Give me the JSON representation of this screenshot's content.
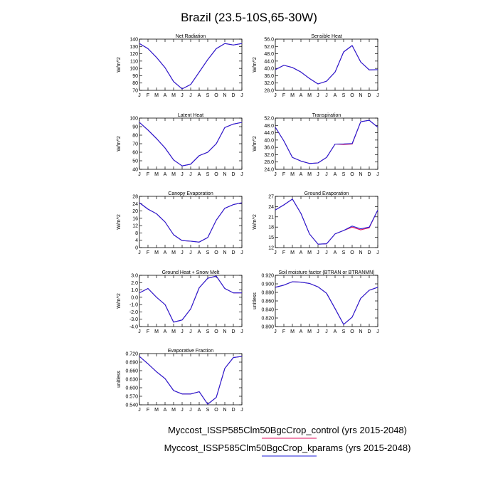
{
  "page": {
    "title": "Brazil (23.5-10S,65-30W)"
  },
  "colors": {
    "control": "#e0115f",
    "kparams": "#1f1fd8",
    "axis": "#000000"
  },
  "legend": {
    "control": "Myccost_ISSP585Clm50BgcCrop_control (yrs 2015-2048)",
    "kparams": "Myccost_ISSP585Clm50BgcCrop_kparams (yrs 2015-2048)"
  },
  "chart_data": [
    {
      "type": "line",
      "title": "Net Radiation",
      "ylabel": "W/m^2",
      "categories": [
        "J",
        "F",
        "M",
        "A",
        "M",
        "J",
        "J",
        "A",
        "S",
        "O",
        "N",
        "D",
        "J"
      ],
      "yticks": [
        "70",
        "80",
        "90",
        "100",
        "110",
        "120",
        "130",
        "140"
      ],
      "ylim": [
        70,
        140
      ],
      "series": [
        {
          "key": "control",
          "values": [
            134,
            127,
            115,
            101,
            82,
            72,
            78,
            95,
            112,
            127,
            134,
            132,
            134
          ]
        },
        {
          "key": "kparams",
          "values": [
            134,
            127,
            115,
            101,
            82,
            72,
            78,
            95,
            112,
            127,
            134,
            132,
            134
          ]
        }
      ]
    },
    {
      "type": "line",
      "title": "Sensible Heat",
      "ylabel": "W/m^2",
      "categories": [
        "J",
        "F",
        "M",
        "A",
        "M",
        "J",
        "J",
        "A",
        "S",
        "O",
        "N",
        "D",
        "J"
      ],
      "yticks": [
        "28.0",
        "32.0",
        "36.0",
        "40.0",
        "44.0",
        "48.0",
        "52.0",
        "56.0"
      ],
      "ylim": [
        28,
        56
      ],
      "series": [
        {
          "key": "control",
          "values": [
            39.3,
            41.7,
            40.5,
            38.0,
            34.5,
            31.5,
            33.0,
            38.0,
            49.0,
            52.5,
            43.5,
            39.2,
            39.3
          ]
        },
        {
          "key": "kparams",
          "values": [
            39.3,
            41.7,
            40.5,
            38.0,
            34.5,
            31.5,
            33.0,
            38.0,
            49.0,
            52.5,
            43.5,
            39.2,
            39.3
          ]
        }
      ]
    },
    {
      "type": "line",
      "title": "Latent Heat",
      "ylabel": "W/m^2",
      "categories": [
        "J",
        "F",
        "M",
        "A",
        "M",
        "J",
        "J",
        "A",
        "S",
        "O",
        "N",
        "D",
        "J"
      ],
      "yticks": [
        "40",
        "50",
        "60",
        "70",
        "80",
        "90",
        "100"
      ],
      "ylim": [
        40,
        100
      ],
      "series": [
        {
          "key": "control",
          "values": [
            95,
            86,
            76,
            65,
            51,
            44,
            46,
            56,
            60,
            70,
            89,
            93,
            95
          ]
        },
        {
          "key": "kparams",
          "values": [
            95,
            86,
            76,
            65,
            51,
            44,
            46,
            56,
            60,
            70,
            89,
            93,
            95
          ]
        }
      ]
    },
    {
      "type": "line",
      "title": "Transpiration",
      "ylabel": "W/m^2",
      "categories": [
        "J",
        "F",
        "M",
        "A",
        "M",
        "J",
        "J",
        "A",
        "S",
        "O",
        "N",
        "D",
        "J"
      ],
      "yticks": [
        "24.0",
        "28.0",
        "32.0",
        "36.0",
        "40.0",
        "44.0",
        "48.0",
        "52.0"
      ],
      "ylim": [
        24,
        52
      ],
      "series": [
        {
          "key": "control",
          "values": [
            47.0,
            39.5,
            30.5,
            28.5,
            27.2,
            27.5,
            30.5,
            37.8,
            37.6,
            37.8,
            50.0,
            50.8,
            47.0
          ]
        },
        {
          "key": "kparams",
          "values": [
            47.0,
            39.5,
            30.5,
            28.5,
            27.2,
            27.5,
            30.5,
            37.8,
            37.9,
            38.1,
            50.0,
            50.8,
            47.0
          ]
        }
      ]
    },
    {
      "type": "line",
      "title": "Canopy Evaporation",
      "ylabel": "W/m^2",
      "categories": [
        "J",
        "F",
        "M",
        "A",
        "M",
        "J",
        "J",
        "A",
        "S",
        "O",
        "N",
        "D",
        "J"
      ],
      "yticks": [
        "0",
        "4",
        "8",
        "12",
        "16",
        "20",
        "24",
        "28"
      ],
      "ylim": [
        0,
        28
      ],
      "series": [
        {
          "key": "control",
          "values": [
            24.5,
            21.0,
            18.5,
            14.0,
            7.0,
            3.8,
            3.5,
            3.0,
            5.5,
            15.0,
            21.5,
            23.5,
            24.5
          ]
        },
        {
          "key": "kparams",
          "values": [
            24.5,
            21.0,
            18.5,
            14.0,
            7.0,
            3.8,
            3.5,
            3.0,
            5.5,
            15.0,
            21.5,
            23.5,
            24.5
          ]
        }
      ]
    },
    {
      "type": "line",
      "title": "Ground Evaporation",
      "ylabel": "W/m^2",
      "categories": [
        "J",
        "F",
        "M",
        "A",
        "M",
        "J",
        "J",
        "A",
        "S",
        "O",
        "N",
        "D",
        "J"
      ],
      "yticks": [
        "12",
        "15",
        "18",
        "21",
        "24",
        "27"
      ],
      "ylim": [
        12,
        27
      ],
      "series": [
        {
          "key": "control",
          "values": [
            23.0,
            24.5,
            26.2,
            22.0,
            16.0,
            13.0,
            13.1,
            16.0,
            17.0,
            18.0,
            17.2,
            17.8,
            23.0
          ]
        },
        {
          "key": "kparams",
          "values": [
            23.0,
            24.5,
            26.2,
            22.0,
            16.0,
            13.0,
            13.1,
            16.0,
            17.0,
            18.3,
            17.5,
            18.0,
            23.0
          ]
        }
      ]
    },
    {
      "type": "line",
      "title": "Ground Heat + Snow Melt",
      "ylabel": "W/m^2",
      "categories": [
        "J",
        "F",
        "M",
        "A",
        "M",
        "J",
        "J",
        "A",
        "S",
        "O",
        "N",
        "D",
        "J"
      ],
      "yticks": [
        "-4.0",
        "-3.0",
        "-2.0",
        "-1.0",
        "0.0",
        "1.0",
        "2.0",
        "3.0"
      ],
      "ylim": [
        -4,
        3
      ],
      "series": [
        {
          "key": "control",
          "values": [
            0.6,
            1.2,
            0.0,
            -1.0,
            -3.4,
            -3.1,
            -1.6,
            1.3,
            2.6,
            2.9,
            1.2,
            0.6,
            0.6
          ]
        },
        {
          "key": "kparams",
          "values": [
            0.6,
            1.2,
            0.0,
            -1.0,
            -3.4,
            -3.1,
            -1.6,
            1.3,
            2.6,
            2.9,
            1.2,
            0.6,
            0.6
          ]
        }
      ]
    },
    {
      "type": "line",
      "title": "Soil moisture factor (BTRAN or BTRANMN)",
      "ylabel": "unitless",
      "categories": [
        "J",
        "F",
        "M",
        "A",
        "M",
        "J",
        "J",
        "A",
        "S",
        "O",
        "N",
        "D",
        "J"
      ],
      "yticks": [
        "0.800",
        "0.820",
        "0.840",
        "0.860",
        "0.880",
        "0.900",
        "0.920"
      ],
      "ylim": [
        0.8,
        0.92
      ],
      "series": [
        {
          "key": "control",
          "values": [
            0.892,
            0.897,
            0.905,
            0.904,
            0.901,
            0.893,
            0.878,
            0.842,
            0.805,
            0.822,
            0.866,
            0.885,
            0.892
          ]
        },
        {
          "key": "kparams",
          "values": [
            0.892,
            0.897,
            0.905,
            0.904,
            0.901,
            0.893,
            0.878,
            0.842,
            0.805,
            0.822,
            0.866,
            0.885,
            0.892
          ]
        }
      ]
    },
    {
      "type": "line",
      "title": "Evaporative Fraction",
      "ylabel": "unitless",
      "categories": [
        "J",
        "F",
        "M",
        "A",
        "M",
        "J",
        "J",
        "A",
        "S",
        "O",
        "N",
        "D",
        "J"
      ],
      "yticks": [
        "0.540",
        "0.570",
        "0.600",
        "0.630",
        "0.660",
        "0.690",
        "0.720"
      ],
      "ylim": [
        0.54,
        0.72
      ],
      "series": [
        {
          "key": "control",
          "values": [
            0.71,
            0.684,
            0.656,
            0.632,
            0.59,
            0.578,
            0.578,
            0.586,
            0.542,
            0.566,
            0.668,
            0.706,
            0.71
          ]
        },
        {
          "key": "kparams",
          "values": [
            0.71,
            0.684,
            0.656,
            0.632,
            0.59,
            0.578,
            0.578,
            0.586,
            0.542,
            0.566,
            0.668,
            0.706,
            0.71
          ]
        }
      ]
    }
  ]
}
